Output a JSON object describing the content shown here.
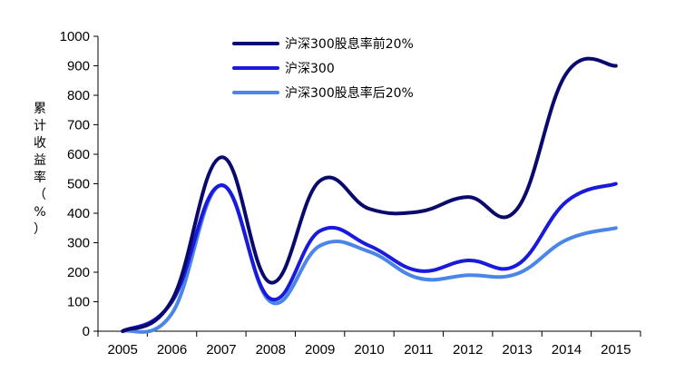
{
  "chart_data": {
    "type": "line",
    "title": "",
    "xlabel": "",
    "ylabel": "累计收益率（%）",
    "ylim": [
      0,
      1000
    ],
    "yticks": [
      0,
      100,
      200,
      300,
      400,
      500,
      600,
      700,
      800,
      900,
      1000
    ],
    "categories": [
      "2005",
      "2006",
      "2007",
      "2008",
      "2009",
      "2010",
      "2011",
      "2012",
      "2013",
      "2014",
      "2015"
    ],
    "grid": false,
    "legend_position": "top-center",
    "series": [
      {
        "name": "沪深300股息率前20%",
        "color": "#0a0a6e",
        "values": [
          0,
          105,
          590,
          165,
          510,
          415,
          405,
          455,
          415,
          875,
          900
        ]
      },
      {
        "name": "沪深300",
        "color": "#1a1adc",
        "values": [
          0,
          100,
          495,
          110,
          340,
          290,
          205,
          240,
          225,
          440,
          500
        ]
      },
      {
        "name": "沪深300股息率后20%",
        "color": "#4a86e8",
        "values": [
          0,
          60,
          495,
          100,
          290,
          270,
          180,
          190,
          195,
          310,
          350
        ]
      }
    ]
  }
}
